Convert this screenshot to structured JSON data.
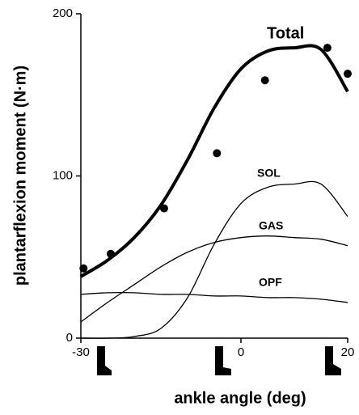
{
  "chart_data": {
    "type": "line",
    "x_label": "ankle angle (deg)",
    "y_label": "plantarflexion moment (N·m)",
    "x": [
      -30,
      -25,
      -20,
      -15,
      -10,
      -5,
      0,
      5,
      10,
      15,
      20
    ],
    "series": [
      {
        "name": "Total",
        "color": "#000000",
        "values": [
          38,
          48,
          62,
          82,
          110,
          142,
          166,
          177,
          179,
          178,
          152
        ]
      },
      {
        "name": "SOL",
        "color": "#000000",
        "values": [
          0,
          0,
          1,
          6,
          25,
          58,
          83,
          93,
          95,
          95,
          75
        ]
      },
      {
        "name": "GAS",
        "color": "#000000",
        "values": [
          10,
          22,
          33,
          44,
          53,
          59,
          62,
          63,
          62,
          61,
          57
        ]
      },
      {
        "name": "OPF",
        "color": "#000000",
        "values": [
          27,
          28,
          28,
          27,
          27,
          26,
          26,
          25,
          25,
          24,
          22
        ]
      }
    ],
    "points": {
      "x": [
        -29.5,
        -24.4,
        -14.4,
        -4.5,
        4.5,
        16.2,
        20
      ],
      "values": [
        43,
        52,
        80,
        114,
        159,
        179,
        163
      ],
      "color": "#000000"
    },
    "xlim": [
      -30,
      20
    ],
    "ylim": [
      0,
      200
    ],
    "xticks": [
      -30,
      0,
      20
    ],
    "yticks": [
      0,
      100,
      200
    ]
  }
}
